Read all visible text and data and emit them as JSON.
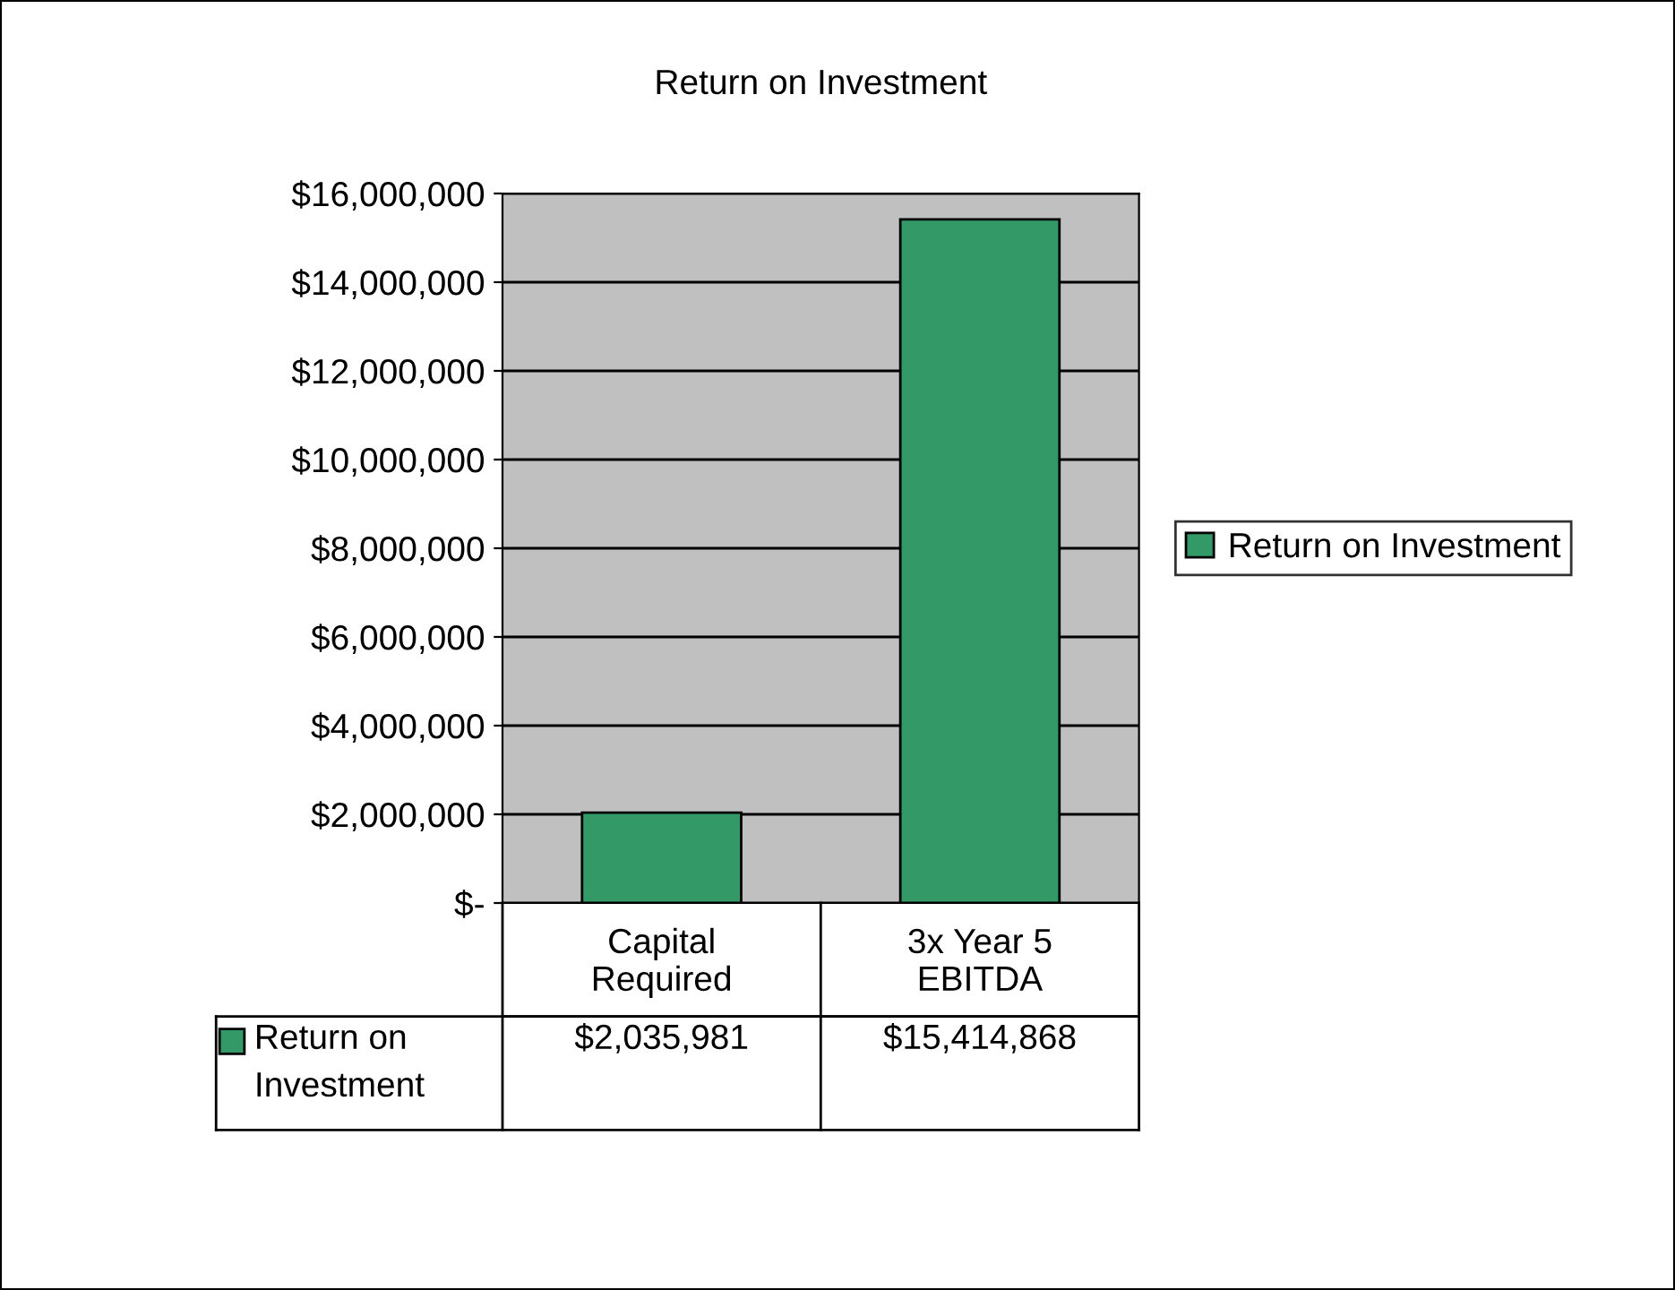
{
  "chart_data": {
    "type": "bar",
    "title": "Return on Investment",
    "categories": [
      "Capital\nRequired",
      "3x Year 5\nEBITDA"
    ],
    "series": [
      {
        "name": "Return on Investment",
        "color": "#339966",
        "values": [
          2035981,
          15414868
        ],
        "value_labels": [
          "$2,035,981",
          "$15,414,868"
        ]
      }
    ],
    "ylim": [
      0,
      16000000
    ],
    "yticks": [
      {
        "value": 0,
        "label": "$-"
      },
      {
        "value": 2000000,
        "label": "$2,000,000"
      },
      {
        "value": 4000000,
        "label": "$4,000,000"
      },
      {
        "value": 6000000,
        "label": "$6,000,000"
      },
      {
        "value": 8000000,
        "label": "$8,000,000"
      },
      {
        "value": 10000000,
        "label": "$10,000,000"
      },
      {
        "value": 12000000,
        "label": "$12,000,000"
      },
      {
        "value": 14000000,
        "label": "$14,000,000"
      },
      {
        "value": 16000000,
        "label": "$16,000,000"
      }
    ],
    "grid": "y",
    "legend": "right"
  }
}
